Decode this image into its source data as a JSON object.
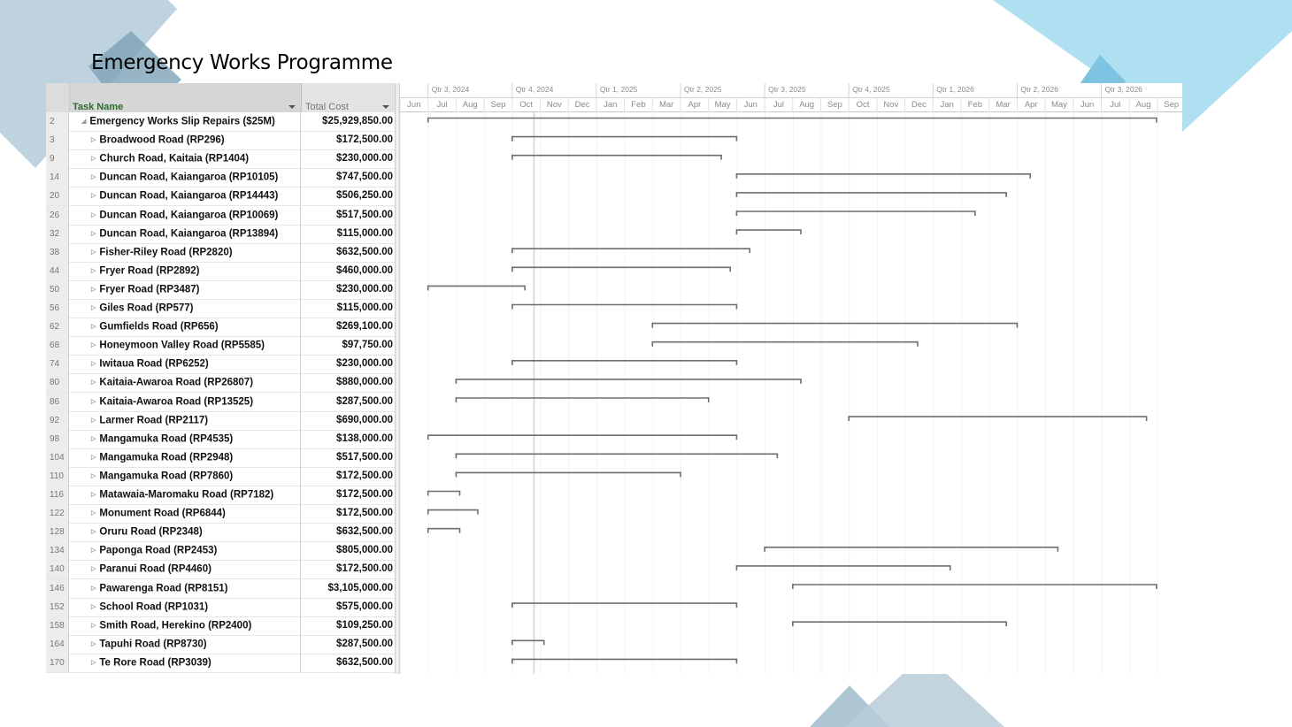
{
  "slide": {
    "title": "Emergency Works Programme"
  },
  "colors": {
    "deco_light_blue": "#a9d9ee",
    "deco_steel": "#7da3b8",
    "header_green": "#2c6b2c",
    "status_line": "#a8d1a3",
    "bar": "#6e6e6e"
  },
  "columns": {
    "task_name": "Task Name",
    "total_cost": "Total Cost"
  },
  "timescale": {
    "quarters": [
      "Qtr 3, 2024",
      "Qtr 4, 2024",
      "Qtr 1, 2025",
      "Qtr 2, 2025",
      "Qtr 3, 2025",
      "Qtr 4, 2025",
      "Qtr 1, 2026",
      "Qtr 2, 2026",
      "Qtr 3, 2026"
    ],
    "months": [
      "Jun",
      "Jul",
      "Aug",
      "Sep",
      "Oct",
      "Nov",
      "Dec",
      "Jan",
      "Feb",
      "Mar",
      "Apr",
      "May",
      "Jun",
      "Jul",
      "Aug",
      "Sep",
      "Oct",
      "Nov",
      "Dec",
      "Jan",
      "Feb",
      "Mar",
      "Apr",
      "May",
      "Jun",
      "Jul",
      "Aug",
      "Sep"
    ]
  },
  "tasks": [
    {
      "id": "2",
      "name": "Emergency Works Slip Repairs ($25M)",
      "cost": "$25,929,850.00",
      "summary": true,
      "start": "2024-07-01",
      "finish": "2026-08-31"
    },
    {
      "id": "3",
      "name": "Broadwood Road (RP296)",
      "cost": "$172,500.00",
      "start": "2024-10-01",
      "finish": "2025-06-01"
    },
    {
      "id": "9",
      "name": "Church Road, Kaitaia (RP1404)",
      "cost": "$230,000.00",
      "start": "2024-10-01",
      "finish": "2025-05-15"
    },
    {
      "id": "14",
      "name": "Duncan Road, Kaiangaroa (RP10105)",
      "cost": "$747,500.00",
      "start": "2025-06-01",
      "finish": "2026-04-15"
    },
    {
      "id": "20",
      "name": "Duncan Road, Kaiangaroa (RP14443)",
      "cost": "$506,250.00",
      "start": "2025-06-01",
      "finish": "2026-03-20"
    },
    {
      "id": "26",
      "name": "Duncan Road, Kaiangaroa (RP10069)",
      "cost": "$517,500.00",
      "start": "2025-06-01",
      "finish": "2026-02-15"
    },
    {
      "id": "32",
      "name": "Duncan Road, Kaiangaroa (RP13894)",
      "cost": "$115,000.00",
      "start": "2025-06-01",
      "finish": "2025-08-10"
    },
    {
      "id": "38",
      "name": "Fisher-Riley Road (RP2820)",
      "cost": "$632,500.00",
      "start": "2024-10-01",
      "finish": "2025-06-15"
    },
    {
      "id": "44",
      "name": "Fryer Road (RP2892)",
      "cost": "$460,000.00",
      "start": "2024-10-01",
      "finish": "2025-05-25"
    },
    {
      "id": "50",
      "name": "Fryer Road (RP3487)",
      "cost": "$230,000.00",
      "start": "2024-07-01",
      "finish": "2024-10-15"
    },
    {
      "id": "56",
      "name": "Giles Road (RP577)",
      "cost": "$115,000.00",
      "start": "2024-10-01",
      "finish": "2025-06-01"
    },
    {
      "id": "62",
      "name": "Gumfields Road (RP656)",
      "cost": "$269,100.00",
      "start": "2025-03-01",
      "finish": "2026-04-01"
    },
    {
      "id": "68",
      "name": "Honeymoon Valley Road (RP5585)",
      "cost": "$97,750.00",
      "start": "2025-03-01",
      "finish": "2025-12-15"
    },
    {
      "id": "74",
      "name": "Iwitaua Road (RP6252)",
      "cost": "$230,000.00",
      "start": "2024-10-01",
      "finish": "2025-06-01"
    },
    {
      "id": "80",
      "name": "Kaitaia-Awaroa Road (RP26807)",
      "cost": "$880,000.00",
      "start": "2024-08-01",
      "finish": "2025-08-10"
    },
    {
      "id": "86",
      "name": "Kaitaia-Awaroa Road (RP13525)",
      "cost": "$287,500.00",
      "start": "2024-08-01",
      "finish": "2025-05-01"
    },
    {
      "id": "92",
      "name": "Larmer Road (RP2117)",
      "cost": "$690,000.00",
      "start": "2025-10-01",
      "finish": "2026-08-20"
    },
    {
      "id": "98",
      "name": "Mangamuka Road (RP4535)",
      "cost": "$138,000.00",
      "start": "2024-07-01",
      "finish": "2025-06-01"
    },
    {
      "id": "104",
      "name": "Mangamuka Road (RP2948)",
      "cost": "$517,500.00",
      "start": "2024-08-01",
      "finish": "2025-07-15"
    },
    {
      "id": "110",
      "name": "Mangamuka Road (RP7860)",
      "cost": "$172,500.00",
      "start": "2024-08-01",
      "finish": "2025-04-01"
    },
    {
      "id": "116",
      "name": "Matawaia-Maromaku Road (RP7182)",
      "cost": "$172,500.00",
      "start": "2024-07-01",
      "finish": "2024-08-05"
    },
    {
      "id": "122",
      "name": "Monument Road (RP6844)",
      "cost": "$172,500.00",
      "start": "2024-07-01",
      "finish": "2024-08-25"
    },
    {
      "id": "128",
      "name": "Oruru Road (RP2348)",
      "cost": "$632,500.00",
      "start": "2024-07-01",
      "finish": "2024-08-05"
    },
    {
      "id": "134",
      "name": "Paponga Road (RP2453)",
      "cost": "$805,000.00",
      "start": "2025-07-01",
      "finish": "2026-05-15"
    },
    {
      "id": "140",
      "name": "Paranui Road (RP4460)",
      "cost": "$172,500.00",
      "start": "2025-06-01",
      "finish": "2026-01-20"
    },
    {
      "id": "146",
      "name": "Pawarenga Road (RP8151)",
      "cost": "$3,105,000.00",
      "start": "2025-08-01",
      "finish": "2026-08-31"
    },
    {
      "id": "152",
      "name": "School Road (RP1031)",
      "cost": "$575,000.00",
      "start": "2024-10-01",
      "finish": "2025-06-01"
    },
    {
      "id": "158",
      "name": "Smith Road, Herekino (RP2400)",
      "cost": "$109,250.00",
      "start": "2025-08-01",
      "finish": "2026-03-20"
    },
    {
      "id": "164",
      "name": "Tapuhi Road (RP8730)",
      "cost": "$287,500.00",
      "start": "2024-10-01",
      "finish": "2024-11-05"
    },
    {
      "id": "170",
      "name": "Te Rore Road (RP3039)",
      "cost": "$632,500.00",
      "start": "2024-10-01",
      "finish": "2025-06-01"
    }
  ],
  "status_date": "2024-10-25"
}
